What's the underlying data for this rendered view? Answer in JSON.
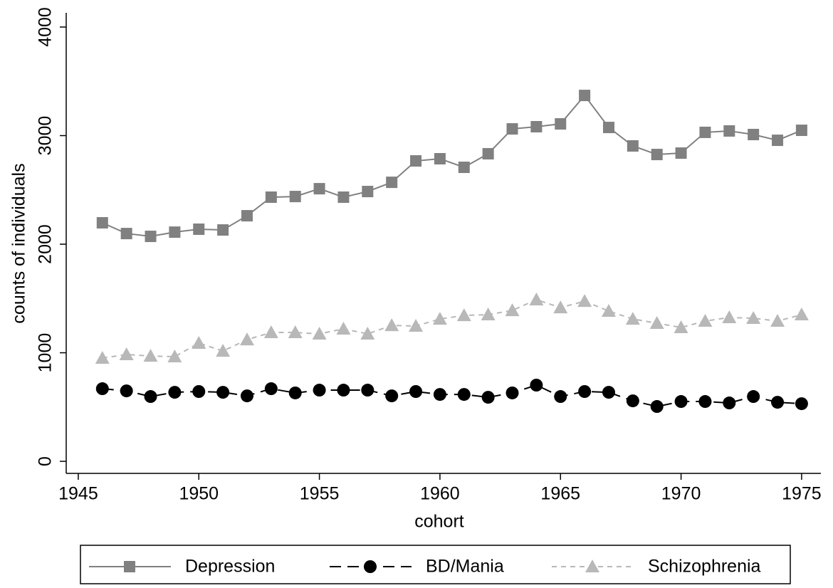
{
  "chart_data": {
    "type": "line",
    "xlabel": "cohort",
    "ylabel": "counts of individuals",
    "x": [
      1946,
      1947,
      1948,
      1949,
      1950,
      1951,
      1952,
      1953,
      1954,
      1955,
      1956,
      1957,
      1958,
      1959,
      1960,
      1961,
      1962,
      1963,
      1964,
      1965,
      1966,
      1967,
      1968,
      1969,
      1970,
      1971,
      1972,
      1973,
      1974,
      1975
    ],
    "series": [
      {
        "name": "Depression",
        "color": "#808080",
        "marker": "square",
        "line_style": "solid",
        "values": [
          2197,
          2098,
          2072,
          2111,
          2138,
          2131,
          2262,
          2433,
          2439,
          2511,
          2433,
          2485,
          2570,
          2767,
          2787,
          2708,
          2833,
          3062,
          3082,
          3108,
          3370,
          3075,
          2905,
          2826,
          2839,
          3030,
          3043,
          3010,
          2957,
          3049
        ]
      },
      {
        "name": "BD/Mania",
        "color": "#000000",
        "marker": "circle",
        "line_style": "dashed",
        "values": [
          669,
          649,
          597,
          636,
          643,
          636,
          603,
          669,
          630,
          656,
          656,
          656,
          603,
          643,
          616,
          616,
          590,
          630,
          702,
          597,
          643,
          636,
          557,
          505,
          551,
          551,
          538,
          597,
          544,
          531
        ]
      },
      {
        "name": "Schizophrenia",
        "color": "#b8b8b8",
        "marker": "triangle",
        "line_style": "dotted",
        "values": [
          951,
          984,
          970,
          964,
          1089,
          1016,
          1121,
          1187,
          1187,
          1174,
          1220,
          1174,
          1252,
          1246,
          1311,
          1344,
          1351,
          1390,
          1489,
          1416,
          1475,
          1384,
          1311,
          1272,
          1233,
          1292,
          1325,
          1318,
          1292,
          1351
        ]
      }
    ],
    "xlim": [
      1944.5,
      1975.8
    ],
    "xticks": [
      1945,
      1950,
      1955,
      1960,
      1965,
      1970,
      1975
    ],
    "ylim": [
      -111,
      4131
    ],
    "yticks": [
      0,
      1000,
      2000,
      3000,
      4000
    ],
    "legend": "bottom"
  }
}
